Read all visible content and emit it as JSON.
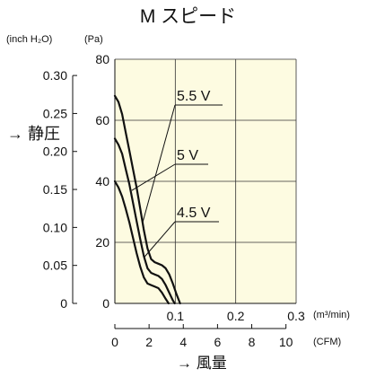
{
  "chart_data": {
    "type": "line",
    "title": "M スピード",
    "plot_background": "#fdfbe1",
    "y_axis_title": "→ 静圧",
    "x_axis_title": "→ 風量",
    "y_left_unit": "(inch H₂O)",
    "y_right_unit": "(Pa)",
    "x_top_unit": "(m³/min)",
    "x_bottom_unit": "(CFM)",
    "y_pa_range": [
      0,
      80
    ],
    "y_pa_ticks": [
      0,
      20,
      40,
      60,
      80
    ],
    "y_inch_range": [
      0,
      0.3214
    ],
    "y_inch_ticks": [
      "0",
      "0.05",
      "0.10",
      "0.15",
      "0.20",
      "0.25",
      "0.30"
    ],
    "x_m3_range": [
      0,
      0.3
    ],
    "x_m3_ticks": [
      "0.1",
      "0.2",
      "0.3"
    ],
    "x_cfm_ticks": [
      "0",
      "2",
      "4",
      "6",
      "8",
      "10"
    ],
    "grid": true,
    "series": [
      {
        "name": "5.5 V",
        "points": [
          [
            0,
            68
          ],
          [
            0.006,
            66
          ],
          [
            0.012,
            62
          ],
          [
            0.018,
            56
          ],
          [
            0.024,
            50
          ],
          [
            0.03,
            44
          ],
          [
            0.036,
            38
          ],
          [
            0.042,
            31
          ],
          [
            0.048,
            24
          ],
          [
            0.054,
            18
          ],
          [
            0.06,
            14.5
          ],
          [
            0.066,
            13.5
          ],
          [
            0.072,
            13
          ],
          [
            0.078,
            12.5
          ],
          [
            0.084,
            11.5
          ],
          [
            0.09,
            9.5
          ],
          [
            0.096,
            6.5
          ],
          [
            0.102,
            3
          ],
          [
            0.108,
            0
          ]
        ]
      },
      {
        "name": "5 V",
        "points": [
          [
            0,
            54
          ],
          [
            0.006,
            52
          ],
          [
            0.012,
            49
          ],
          [
            0.018,
            44
          ],
          [
            0.024,
            39
          ],
          [
            0.03,
            33
          ],
          [
            0.036,
            27
          ],
          [
            0.042,
            21
          ],
          [
            0.048,
            15.5
          ],
          [
            0.054,
            11.5
          ],
          [
            0.06,
            10
          ],
          [
            0.066,
            9.5
          ],
          [
            0.072,
            9
          ],
          [
            0.078,
            8
          ],
          [
            0.084,
            6
          ],
          [
            0.09,
            3.5
          ],
          [
            0.096,
            1
          ],
          [
            0.099,
            0
          ]
        ]
      },
      {
        "name": "4.5 V",
        "points": [
          [
            0,
            40
          ],
          [
            0.006,
            38
          ],
          [
            0.012,
            35
          ],
          [
            0.018,
            31
          ],
          [
            0.024,
            26.5
          ],
          [
            0.03,
            21.5
          ],
          [
            0.036,
            16.5
          ],
          [
            0.042,
            12
          ],
          [
            0.048,
            8.5
          ],
          [
            0.054,
            6.5
          ],
          [
            0.06,
            6
          ],
          [
            0.066,
            5.5
          ],
          [
            0.072,
            5
          ],
          [
            0.078,
            3.5
          ],
          [
            0.084,
            1.5
          ],
          [
            0.089,
            0
          ]
        ]
      }
    ],
    "annotations": [
      {
        "text": "5.5 V",
        "points_to": [
          0.046,
          26.5
        ]
      },
      {
        "text": "5 V",
        "points_to": [
          0.028,
          37
        ]
      },
      {
        "text": "4.5 V",
        "points_to": [
          0.048,
          15
        ]
      }
    ]
  }
}
